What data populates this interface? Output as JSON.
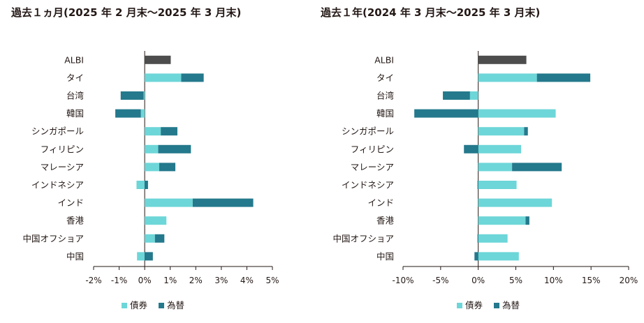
{
  "colors": {
    "bond": "#6dd6d8",
    "fx": "#24798c",
    "albi": "#4d4d4d",
    "axis": "#231815"
  },
  "chart_data": [
    {
      "type": "bar",
      "orientation": "horizontal",
      "stacked": true,
      "title": "過去１ヵ月(2025 年 2 月末〜2025 年 3 月末)",
      "categories": [
        "ALBI",
        "タイ",
        "台湾",
        "韓国",
        "シンガポール",
        "フィリピン",
        "マレーシア",
        "インドネシア",
        "インド",
        "香港",
        "中国オフショア",
        "中国"
      ],
      "series": [
        {
          "name": "債券",
          "values": [
            null,
            1.43,
            -0.04,
            -0.15,
            0.63,
            0.53,
            0.57,
            -0.32,
            1.88,
            0.85,
            0.4,
            -0.3
          ]
        },
        {
          "name": "為替",
          "values": [
            null,
            0.88,
            -0.9,
            -1.0,
            0.65,
            1.28,
            0.63,
            0.13,
            2.37,
            0.0,
            0.37,
            0.32
          ]
        }
      ],
      "totals": {
        "ALBI": 1.02
      },
      "xlim": [
        -2,
        5
      ],
      "ticks": [
        -2,
        -1,
        0,
        1,
        2,
        3,
        4,
        5
      ],
      "tick_labels": [
        "-2%",
        "-1%",
        "0%",
        "1%",
        "2%",
        "3%",
        "4%",
        "5%"
      ],
      "legend": "bottom"
    },
    {
      "type": "bar",
      "orientation": "horizontal",
      "stacked": true,
      "title": "過去１年(2024 年 3 月末〜2025 年 3 月末)",
      "categories": [
        "ALBI",
        "タイ",
        "台湾",
        "韓国",
        "シンガポール",
        "フィリピン",
        "マレーシア",
        "インドネシア",
        "インド",
        "香港",
        "中国オフショア",
        "中国"
      ],
      "series": [
        {
          "name": "債券",
          "values": [
            null,
            7.8,
            -1.1,
            10.3,
            6.1,
            5.7,
            4.5,
            5.1,
            9.8,
            6.3,
            3.9,
            5.4
          ]
        },
        {
          "name": "為替",
          "values": [
            null,
            7.1,
            -3.6,
            -8.5,
            0.5,
            -1.9,
            6.6,
            -0.1,
            0.0,
            0.5,
            -0.1,
            -0.5
          ]
        }
      ],
      "totals": {
        "ALBI": 6.4
      },
      "xlim": [
        -10,
        20
      ],
      "ticks": [
        -10,
        -5,
        0,
        5,
        10,
        15,
        20
      ],
      "tick_labels": [
        "-10%",
        "-5%",
        "0%",
        "5%",
        "10%",
        "15%",
        "20%"
      ],
      "legend": "bottom"
    }
  ]
}
